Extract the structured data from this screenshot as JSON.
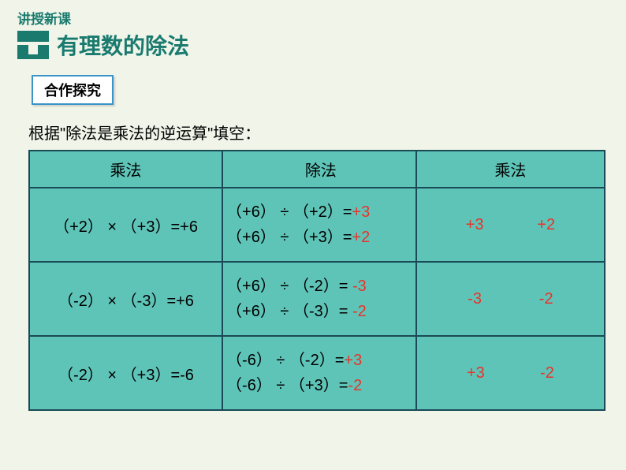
{
  "header": {
    "lesson_label": "讲授新课",
    "main_title": "有理数的除法",
    "sub_label": "合作探究"
  },
  "instruction": "根据\"除法是乘法的逆运算\"填空：",
  "table": {
    "headers": [
      "乘法",
      "除法",
      "乘法"
    ],
    "header_bg": "#5fc4b8",
    "cell_bg": "#5fc4b8",
    "border_color": "#1a4a56",
    "answer_color": "#e8332a",
    "rows": [
      {
        "mult": "（+2） ×  （+3）=+6",
        "div": [
          {
            "expr": "（+6） ÷  （+2）=",
            "ans": "+3"
          },
          {
            "expr": "（+6） ÷  （+3）=",
            "ans": "+2"
          }
        ],
        "result": [
          "+3",
          "+2"
        ]
      },
      {
        "mult": "（-2） ×  （-3）=+6",
        "div": [
          {
            "expr": "（+6） ÷  （-2）= ",
            "ans": "-3"
          },
          {
            "expr": "（+6） ÷  （-3）= ",
            "ans": "-2"
          }
        ],
        "result": [
          "-3",
          "-2"
        ]
      },
      {
        "mult": "（-2） ×  （+3）=-6",
        "div": [
          {
            "expr": "（-6） ÷  （-2）=",
            "ans": "+3"
          },
          {
            "expr": "（-6） ÷  （+3）=",
            "ans": "-2"
          }
        ],
        "result": [
          "+3",
          "-2"
        ]
      }
    ]
  },
  "colors": {
    "page_bg": "#f0f4e9",
    "accent": "#1a7a6e",
    "border_blue": "#3a94c8"
  }
}
